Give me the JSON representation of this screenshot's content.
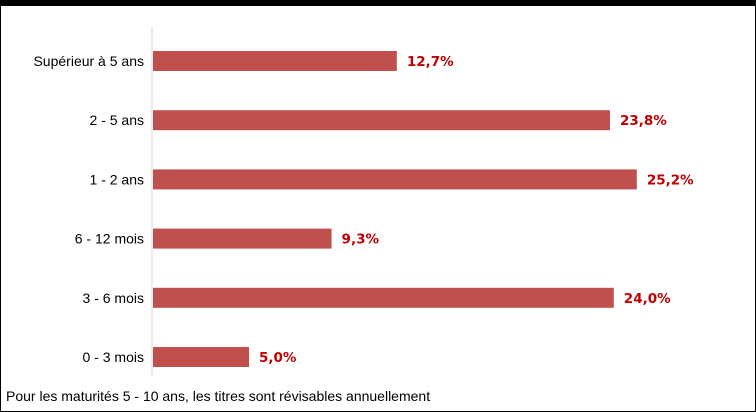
{
  "chart_data": {
    "type": "bar",
    "orientation": "horizontal",
    "categories": [
      "Supérieur à 5 ans",
      "2 - 5 ans",
      "1 - 2 ans",
      "6 - 12 mois",
      "3 - 6 mois",
      "0 - 3 mois"
    ],
    "values": [
      12.7,
      23.8,
      25.2,
      9.3,
      24.0,
      5.0
    ],
    "value_labels": [
      "12,7%",
      "23,8%",
      "25,2%",
      "9,3%",
      "24,0%",
      "5,0%"
    ],
    "unit": "%",
    "xlim": [
      0,
      30
    ],
    "grid": false,
    "legend": "none",
    "colors": {
      "bar": "#c0504d",
      "value_label": "#c00000",
      "axis": "#d9d9d9"
    }
  },
  "footnote": "Pour les maturités 5 - 10 ans, les titres sont révisables annuellement"
}
